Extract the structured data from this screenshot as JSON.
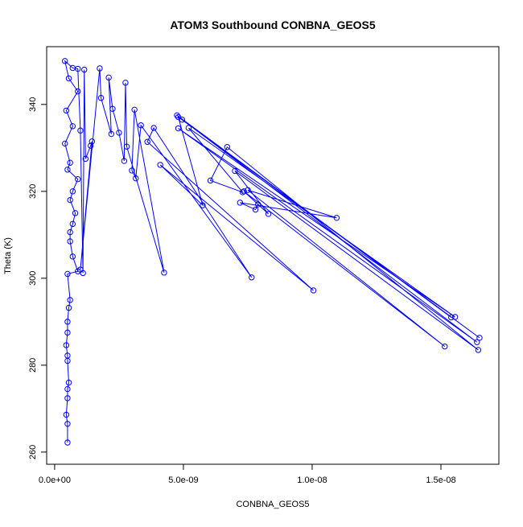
{
  "chart_data": {
    "type": "line",
    "title": "ATOM3 Southbound CONBNA_GEOS5",
    "xlabel": "CONBNA_GEOS5",
    "ylabel": "Theta (K)",
    "xlim": [
      -3.1e-10,
      1.725e-08
    ],
    "ylim": [
      257.2,
      353.3
    ],
    "xticks": [
      {
        "value": 0,
        "label": "0.0e+00"
      },
      {
        "value": 5e-09,
        "label": "5.0e-09"
      },
      {
        "value": 1e-08,
        "label": "1.0e-08"
      },
      {
        "value": 1.5e-08,
        "label": "1.5e-08"
      }
    ],
    "yticks": [
      260,
      280,
      300,
      320,
      340
    ],
    "markers": true,
    "series": [
      {
        "color": "#0000ff",
        "x": [
          5e-10,
          5e-10,
          4.5e-10,
          5e-10,
          5e-10,
          5.5e-10,
          5e-10,
          5e-10,
          4.5e-10,
          5e-10,
          5e-10,
          5.5e-10,
          6e-10,
          5e-10,
          9e-10,
          7e-10,
          6e-10,
          6e-10,
          7e-10,
          8e-10,
          6e-10,
          7e-10,
          9e-10,
          5e-10,
          6e-10,
          4e-10,
          7e-10,
          4.5e-10,
          9e-10,
          5.5e-10,
          4e-10,
          7e-10,
          9e-10,
          1e-09,
          1.1e-09,
          1.15e-09,
          1.2e-09,
          1.4e-09,
          1.45e-09,
          1e-09,
          1.75e-09,
          1.8e-09,
          2.2e-09,
          2.1e-09,
          2.25e-09,
          2.5e-09,
          2.7e-09,
          2.75e-09,
          2.8e-09,
          4.25e-09,
          3.1e-09,
          3e-09,
          3.15e-09,
          3.35e-09,
          7.65e-09,
          3.85e-09,
          3.6e-09,
          1.005e-08,
          4.1e-09,
          5.75e-09,
          4.8e-09,
          1.65e-08,
          4.75e-09,
          1.54e-08,
          4.95e-09,
          1.64e-08,
          4.8e-09,
          1.555e-08,
          5.2e-09,
          7.3e-09,
          6.05e-09,
          6.7e-09,
          1.645e-08,
          7e-09,
          8.3e-09,
          7.35e-09,
          1.515e-08,
          7.5e-09,
          1.095e-08,
          7.2e-09,
          7.8e-09,
          7.9e-09
        ],
        "values": [
          262.2,
          266.5,
          268.6,
          272.4,
          274.5,
          276,
          281,
          282.2,
          284.6,
          287.5,
          290,
          293.2,
          295,
          301,
          301.6,
          305,
          308.5,
          310.6,
          312.5,
          315,
          318,
          320,
          322.8,
          325,
          326.6,
          331,
          335,
          338.6,
          343,
          346,
          350,
          348.4,
          348.2,
          334,
          301.2,
          348,
          327.5,
          330.5,
          331.5,
          302,
          348.3,
          341.5,
          333.2,
          346.2,
          339,
          333.5,
          327,
          345,
          330.3,
          301.3,
          338.8,
          324.8,
          323,
          335.2,
          300.2,
          334.6,
          331.4,
          297.2,
          326.1,
          316.8,
          337.1,
          286.3,
          337.5,
          291,
          336.5,
          285.3,
          334.5,
          291.1,
          334.6,
          319.8,
          322.5,
          330.2,
          283.5,
          324.7,
          314.8,
          320,
          284.3,
          320.3,
          313.9,
          317.4,
          315.8,
          317
        ]
      }
    ]
  }
}
